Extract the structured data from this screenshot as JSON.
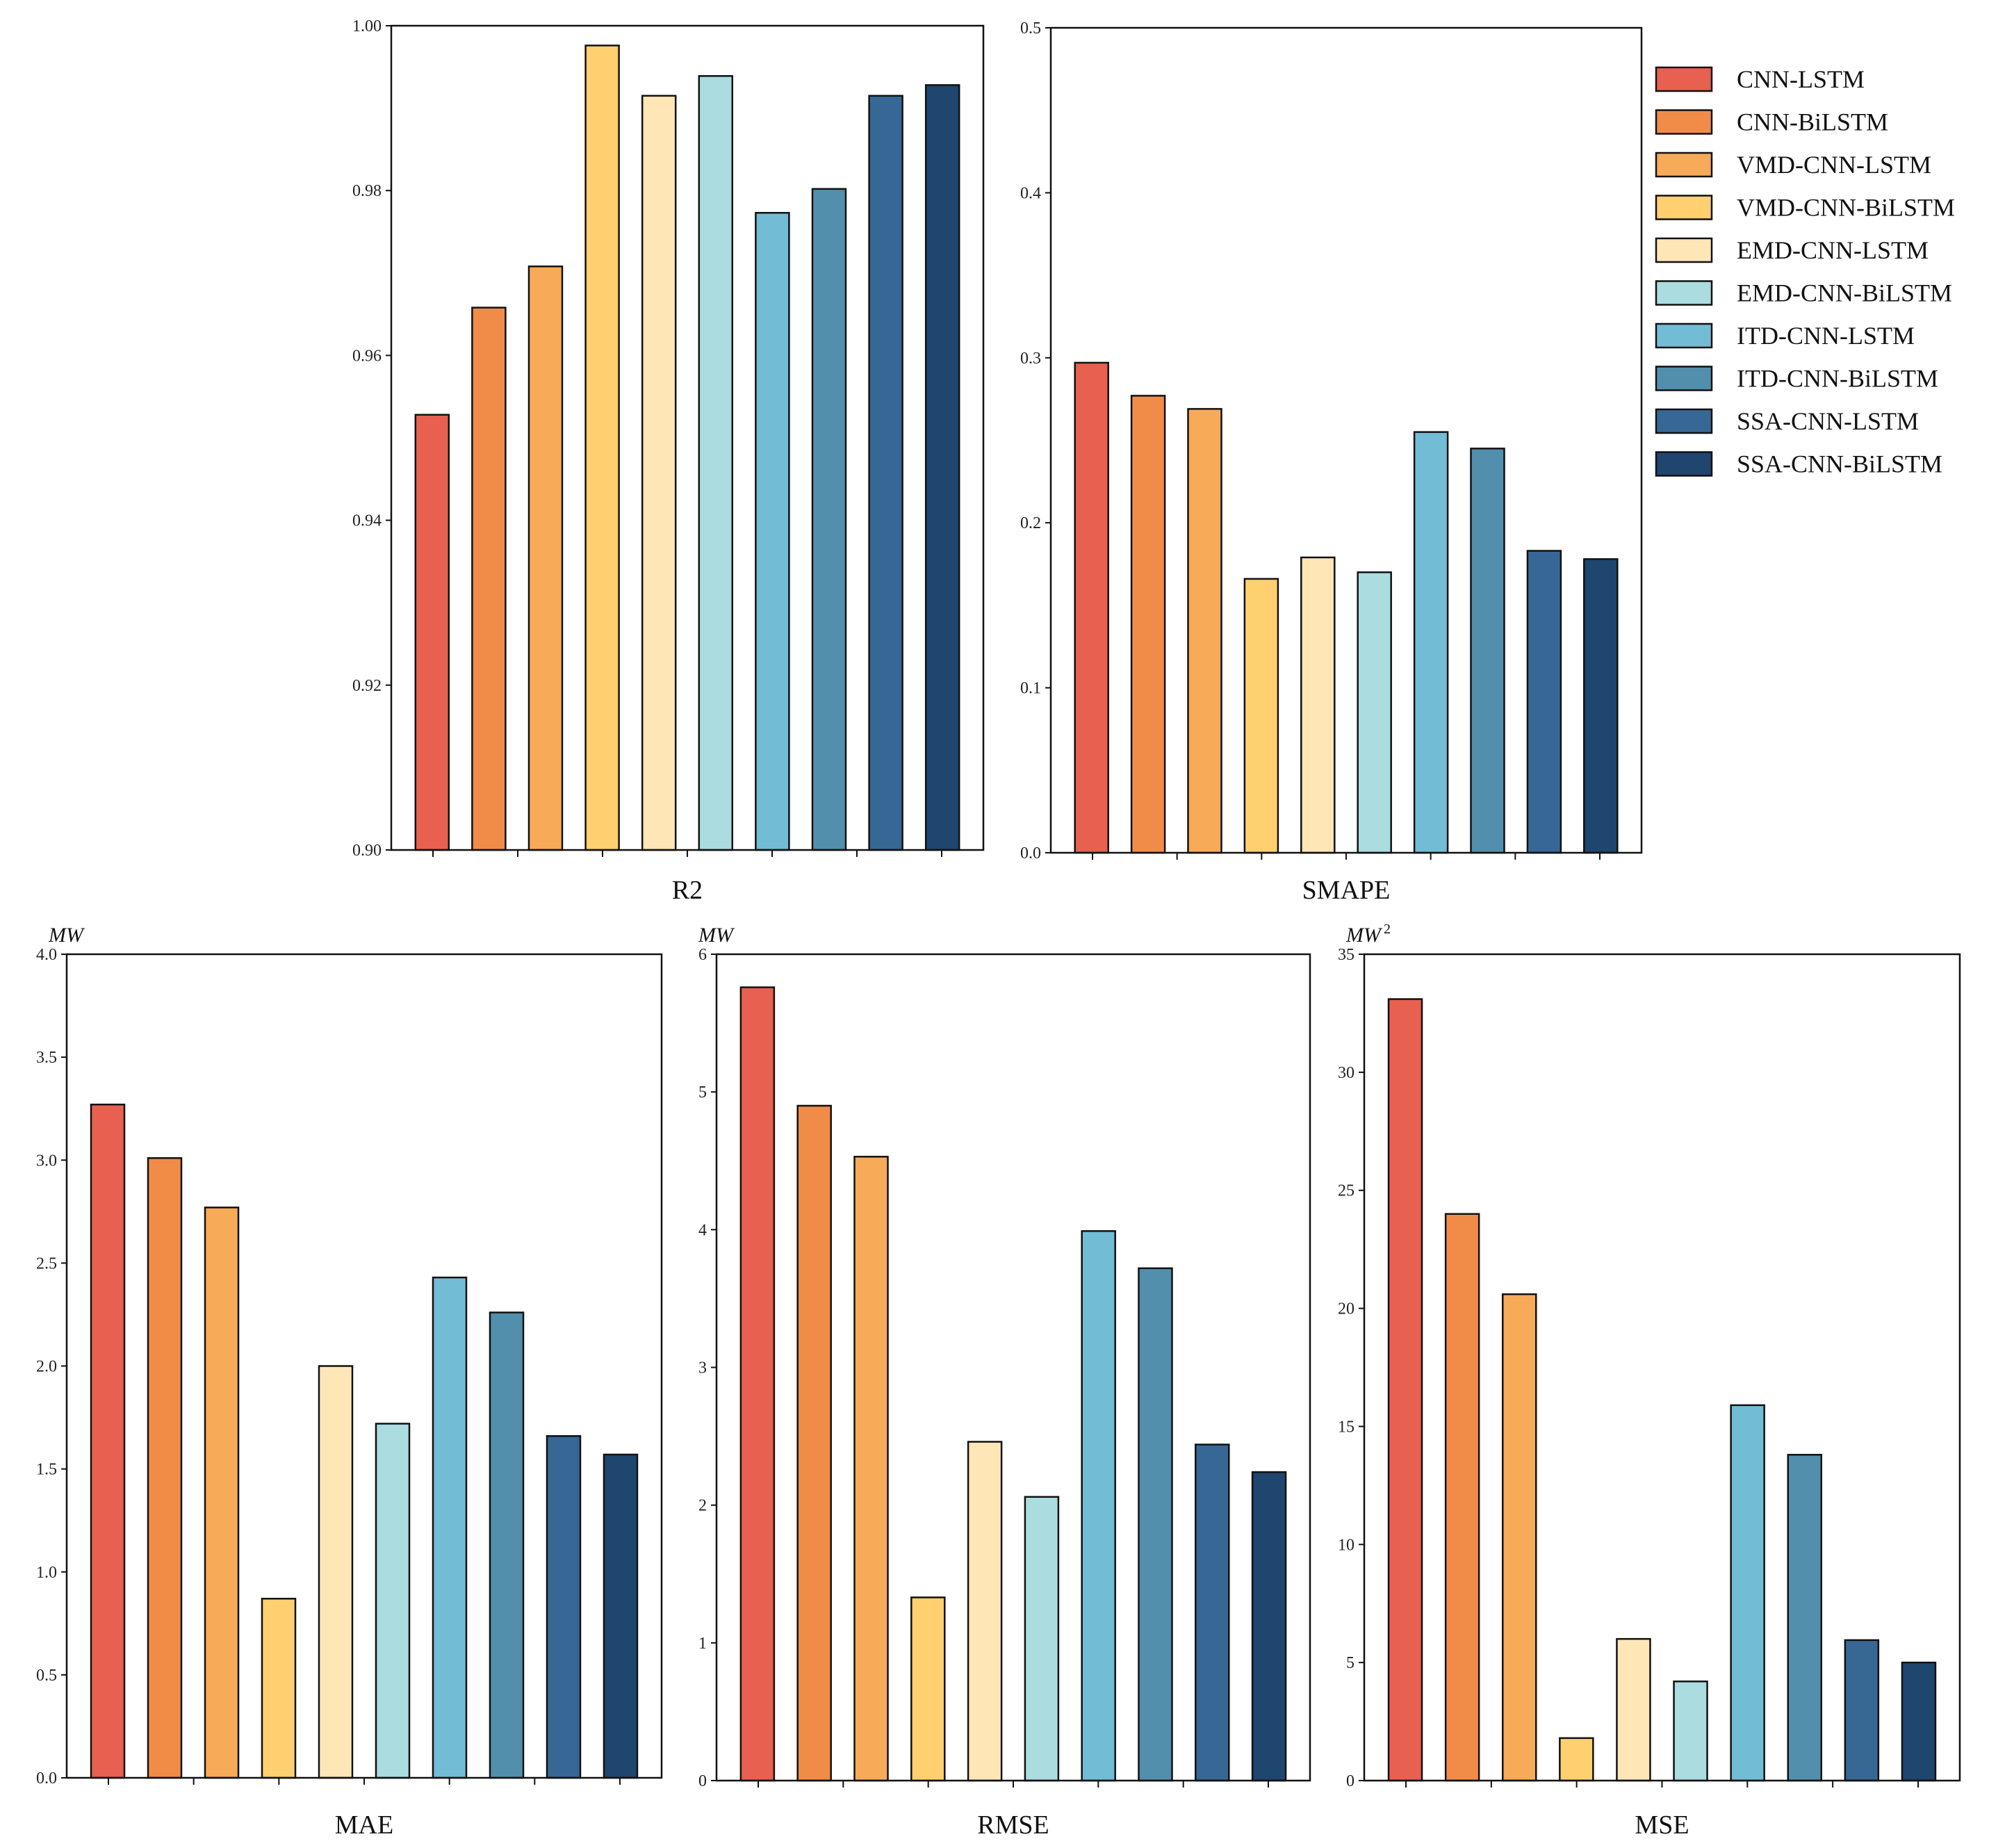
{
  "colors": [
    "#e8604f",
    "#f08c48",
    "#f7aa58",
    "#ffd06f",
    "#ffe6b7",
    "#aadce0",
    "#72bcd5",
    "#528fad",
    "#376795",
    "#1e466e"
  ],
  "legend": [
    "CNN-LSTM",
    "CNN-BiLSTM",
    "VMD-CNN-LSTM",
    "VMD-CNN-BiLSTM",
    "EMD-CNN-LSTM",
    "EMD-CNN-BiLSTM",
    "ITD-CNN-LSTM",
    "ITD-CNN-BiLSTM",
    "SSA-CNN-LSTM",
    "SSA-CNN-BiLSTM"
  ],
  "chart_data": [
    {
      "type": "bar",
      "title": "",
      "xlabel": "R2",
      "ylabel": "",
      "unit": "",
      "ylim": [
        0.9,
        1.0
      ],
      "ytick_labels": [
        "0.90",
        "0.92",
        "0.94",
        "0.96",
        "0.98",
        "1.00"
      ],
      "categories": [
        "CNN-LSTM",
        "CNN-BiLSTM",
        "VMD-CNN-LSTM",
        "VMD-CNN-BiLSTM",
        "EMD-CNN-LSTM",
        "EMD-CNN-BiLSTM",
        "ITD-CNN-LSTM",
        "ITD-CNN-BiLSTM",
        "SSA-CNN-LSTM",
        "SSA-CNN-BiLSTM"
      ],
      "values": [
        0.9528,
        0.9658,
        0.9708,
        0.9976,
        0.9915,
        0.9939,
        0.9773,
        0.9802,
        0.9915,
        0.9928
      ]
    },
    {
      "type": "bar",
      "title": "",
      "xlabel": "SMAPE",
      "ylabel": "",
      "unit": "",
      "ylim": [
        0.0,
        0.5
      ],
      "ytick_labels": [
        "0.0",
        "0.1",
        "0.2",
        "0.3",
        "0.4",
        "0.5"
      ],
      "categories": [
        "CNN-LSTM",
        "CNN-BiLSTM",
        "VMD-CNN-LSTM",
        "VMD-CNN-BiLSTM",
        "EMD-CNN-LSTM",
        "EMD-CNN-BiLSTM",
        "ITD-CNN-LSTM",
        "ITD-CNN-BiLSTM",
        "SSA-CNN-LSTM",
        "SSA-CNN-BiLSTM"
      ],
      "values": [
        0.297,
        0.277,
        0.269,
        0.166,
        0.179,
        0.17,
        0.255,
        0.245,
        0.183,
        0.178
      ]
    },
    {
      "type": "bar",
      "title": "",
      "xlabel": "MAE",
      "ylabel": "",
      "unit": "MW",
      "ylim": [
        0.0,
        4.0
      ],
      "ytick_labels": [
        "0.0",
        "0.5",
        "1.0",
        "1.5",
        "2.0",
        "2.5",
        "3.0",
        "3.5",
        "4.0"
      ],
      "categories": [
        "CNN-LSTM",
        "CNN-BiLSTM",
        "VMD-CNN-LSTM",
        "VMD-CNN-BiLSTM",
        "EMD-CNN-LSTM",
        "EMD-CNN-BiLSTM",
        "ITD-CNN-LSTM",
        "ITD-CNN-BiLSTM",
        "SSA-CNN-LSTM",
        "SSA-CNN-BiLSTM"
      ],
      "values": [
        3.27,
        3.01,
        2.77,
        0.87,
        2.0,
        1.72,
        2.43,
        2.26,
        1.66,
        1.57
      ]
    },
    {
      "type": "bar",
      "title": "",
      "xlabel": "RMSE",
      "ylabel": "",
      "unit": "MW",
      "ylim": [
        0,
        6
      ],
      "ytick_labels": [
        "0",
        "1",
        "2",
        "3",
        "4",
        "5",
        "6"
      ],
      "categories": [
        "CNN-LSTM",
        "CNN-BiLSTM",
        "VMD-CNN-LSTM",
        "VMD-CNN-BiLSTM",
        "EMD-CNN-LSTM",
        "EMD-CNN-BiLSTM",
        "ITD-CNN-LSTM",
        "ITD-CNN-BiLSTM",
        "SSA-CNN-LSTM",
        "SSA-CNN-BiLSTM"
      ],
      "values": [
        5.76,
        4.9,
        4.53,
        1.33,
        2.46,
        2.06,
        3.99,
        3.72,
        2.44,
        2.24
      ]
    },
    {
      "type": "bar",
      "title": "",
      "xlabel": "MSE",
      "ylabel": "",
      "unit": "MW",
      "unit_sup": "2",
      "ylim": [
        0,
        35
      ],
      "ytick_labels": [
        "0",
        "5",
        "10",
        "15",
        "20",
        "25",
        "30",
        "35"
      ],
      "categories": [
        "CNN-LSTM",
        "CNN-BiLSTM",
        "VMD-CNN-LSTM",
        "VMD-CNN-BiLSTM",
        "EMD-CNN-LSTM",
        "EMD-CNN-BiLSTM",
        "ITD-CNN-LSTM",
        "ITD-CNN-BiLSTM",
        "SSA-CNN-LSTM",
        "SSA-CNN-BiLSTM"
      ],
      "values": [
        33.1,
        24.0,
        20.6,
        1.8,
        6.0,
        4.2,
        15.9,
        13.8,
        5.95,
        5.0
      ]
    }
  ]
}
